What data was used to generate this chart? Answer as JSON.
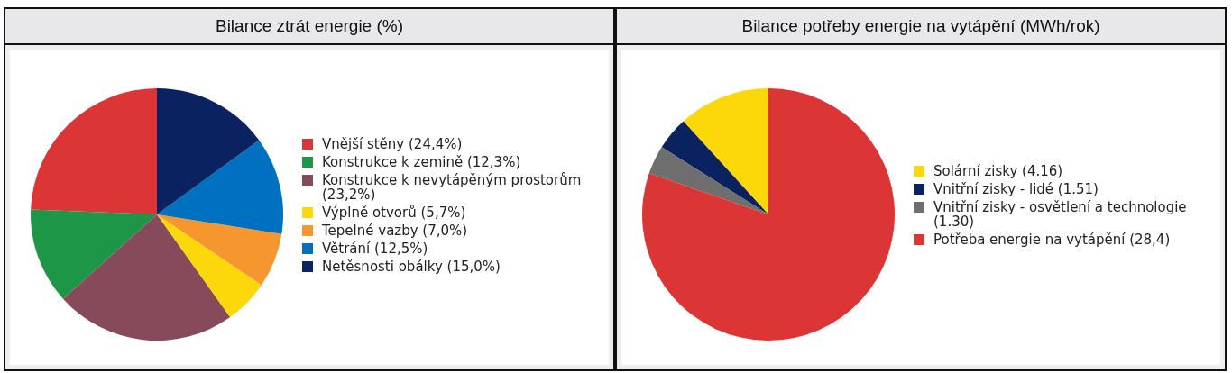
{
  "chart_data": [
    {
      "type": "pie",
      "title": "Bilance ztrát energie (%)",
      "categories": [
        "Vnější stěny (24,4%)",
        "Konstrukce k zemině (12,3%)",
        "Konstrukce k nevytápěným prostorům (23,2%)",
        "Výplně otvorů (5,7%)",
        "Tepelné vazby (7,0%)",
        "Větrání (12,5%)",
        "Netěsnosti obálky (15,0%)"
      ],
      "values": [
        24.4,
        12.3,
        23.2,
        5.7,
        7.0,
        12.5,
        15.0
      ],
      "colors": [
        "#dc3535",
        "#1e9647",
        "#874a5a",
        "#fcd80a",
        "#f6962f",
        "#0070c0",
        "#0a2260"
      ],
      "legend": "right"
    },
    {
      "type": "pie",
      "title": "Bilance potřeby energie na vytápění (MWh/rok)",
      "categories": [
        "Solární zisky (4.16)",
        "Vnitřní zisky - lidé (1.51)",
        "Vnitřní zisky - osvětlení a technologie (1.30)",
        "Potřeba energie na vytápění (28,4)"
      ],
      "values": [
        4.16,
        1.51,
        1.3,
        28.4
      ],
      "colors": [
        "#fcd80a",
        "#0a2260",
        "#6e6e6e",
        "#dc3535"
      ],
      "legend": "right"
    }
  ]
}
